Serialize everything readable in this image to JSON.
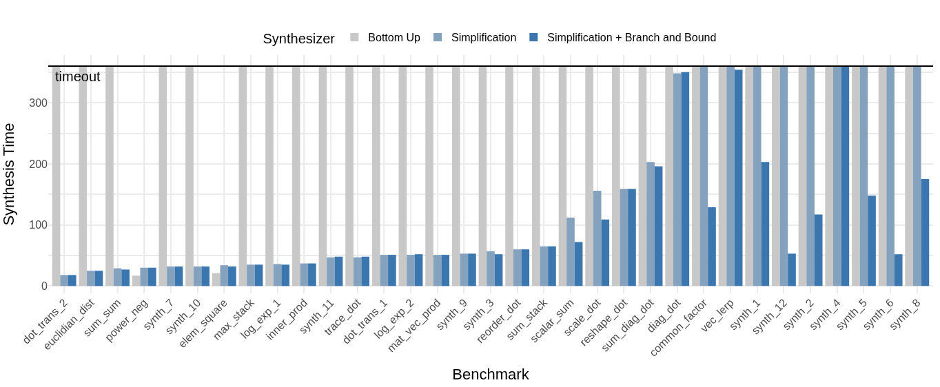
{
  "chart_data": {
    "type": "bar",
    "xlabel": "Benchmark",
    "ylabel": "Synthesis Time",
    "legend_title": "Synthesizer",
    "legend": "top",
    "categories": [
      "dot_trans_2",
      "euclidian_dist",
      "sum_sum",
      "power_neg",
      "synth_7",
      "synth_10",
      "elem_square",
      "max_stack",
      "log_exp_1",
      "inner_prod",
      "synth_11",
      "trace_dot",
      "dot_trans_1",
      "log_exp_2",
      "mat_vec_prod",
      "synth_9",
      "synth_3",
      "reorder_dot",
      "sum_stack",
      "scalar_sum",
      "scale_dot",
      "reshape_dot",
      "sum_diag_dot",
      "diag_dot",
      "common_factor",
      "vec_lerp",
      "synth_1",
      "synth_12",
      "synth_2",
      "synth_4",
      "synth_5",
      "synth_6",
      "synth_8"
    ],
    "series": [
      {
        "name": "Bottom Up",
        "color": "#c8c8c8",
        "values": [
          360,
          360,
          360,
          17,
          360,
          360,
          21,
          360,
          360,
          360,
          360,
          360,
          360,
          360,
          360,
          360,
          360,
          360,
          360,
          360,
          360,
          360,
          360,
          360,
          360,
          360,
          360,
          360,
          360,
          360,
          360,
          360,
          360
        ]
      },
      {
        "name": "Simplification",
        "color": "#84a1be",
        "values": [
          18,
          25,
          29,
          30,
          32,
          32,
          34,
          35,
          36,
          37,
          47,
          47,
          51,
          51,
          51,
          53,
          57,
          60,
          65,
          112,
          156,
          159,
          203,
          348,
          360,
          360,
          360,
          360,
          360,
          360,
          360,
          360,
          360
        ]
      },
      {
        "name": "Simplification + Branch and Bound",
        "color": "#3b77ae",
        "values": [
          18,
          25,
          27,
          30,
          32,
          32,
          32,
          35,
          35,
          37,
          48,
          48,
          51,
          52,
          51,
          53,
          52,
          60,
          65,
          72,
          109,
          159,
          196,
          350,
          129,
          354,
          203,
          53,
          117,
          360,
          148,
          52,
          175
        ]
      }
    ],
    "ylim": [
      -12,
      378
    ],
    "yticks": [
      0,
      {
        "value": 50,
        "label": null
      },
      100,
      {
        "value": 150,
        "label": null
      },
      200,
      {
        "value": 250,
        "label": null
      },
      300,
      {
        "value": 350,
        "label": null
      }
    ],
    "grid": true,
    "ref_lines": [
      {
        "axis": "y",
        "value": 360,
        "label": "timeout",
        "color": "#000000"
      }
    ]
  }
}
